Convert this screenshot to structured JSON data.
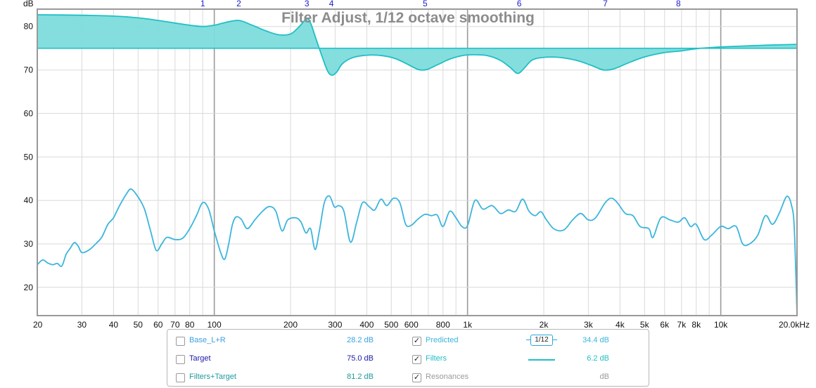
{
  "chart_data": {
    "type": "line",
    "title": "Filter Adjust, 1/12 octave smoothing",
    "ylabel": "dB",
    "x_scale": "log",
    "xlim": [
      20,
      20000
    ],
    "ylim": [
      13.5,
      84
    ],
    "x_ticks": [
      {
        "v": 20,
        "label": "20"
      },
      {
        "v": 30,
        "label": "30"
      },
      {
        "v": 40,
        "label": "40"
      },
      {
        "v": 50,
        "label": "50"
      },
      {
        "v": 60,
        "label": "60"
      },
      {
        "v": 70,
        "label": "70"
      },
      {
        "v": 80,
        "label": "80"
      },
      {
        "v": 100,
        "label": "100"
      },
      {
        "v": 200,
        "label": "200"
      },
      {
        "v": 300,
        "label": "300"
      },
      {
        "v": 400,
        "label": "400"
      },
      {
        "v": 500,
        "label": "500"
      },
      {
        "v": 600,
        "label": "600"
      },
      {
        "v": 800,
        "label": "800"
      },
      {
        "v": 1000,
        "label": "1k"
      },
      {
        "v": 2000,
        "label": "2k"
      },
      {
        "v": 3000,
        "label": "3k"
      },
      {
        "v": 4000,
        "label": "4k"
      },
      {
        "v": 5000,
        "label": "5k"
      },
      {
        "v": 6000,
        "label": "6k"
      },
      {
        "v": 7000,
        "label": "7k"
      },
      {
        "v": 8000,
        "label": "8k"
      },
      {
        "v": 10000,
        "label": "10k"
      },
      {
        "v": 20000,
        "label": "20.0kHz"
      }
    ],
    "y_ticks": [
      20,
      30,
      40,
      50,
      60,
      70,
      80
    ],
    "filter_markers": [
      {
        "label": "1",
        "freq": 90
      },
      {
        "label": "2",
        "freq": 125
      },
      {
        "label": "3",
        "freq": 232
      },
      {
        "label": "4",
        "freq": 290
      },
      {
        "label": "5",
        "freq": 680
      },
      {
        "label": "6",
        "freq": 1600
      },
      {
        "label": "7",
        "freq": 3500
      },
      {
        "label": "8",
        "freq": 6800
      }
    ],
    "target_level": 75.0,
    "series": [
      {
        "name": "Predicted",
        "color": "#3cb5dc",
        "points": [
          [
            20,
            25.2
          ],
          [
            21,
            26.3
          ],
          [
            22,
            25.6
          ],
          [
            23,
            25.2
          ],
          [
            24,
            25.5
          ],
          [
            25,
            24.9
          ],
          [
            26,
            27.6
          ],
          [
            27,
            29
          ],
          [
            28,
            30.3
          ],
          [
            29,
            29.5
          ],
          [
            30,
            28
          ],
          [
            32,
            28.6
          ],
          [
            34,
            30
          ],
          [
            36,
            31.6
          ],
          [
            38,
            34.5
          ],
          [
            40,
            36
          ],
          [
            42,
            38.5
          ],
          [
            45,
            41.5
          ],
          [
            47,
            42.6
          ],
          [
            50,
            40.8
          ],
          [
            53,
            38
          ],
          [
            56,
            33
          ],
          [
            59,
            28.5
          ],
          [
            62,
            30
          ],
          [
            65,
            31.5
          ],
          [
            70,
            31
          ],
          [
            75,
            31.3
          ],
          [
            80,
            33.5
          ],
          [
            85,
            36.5
          ],
          [
            90,
            39.5
          ],
          [
            95,
            38
          ],
          [
            100,
            33
          ],
          [
            106,
            28
          ],
          [
            110,
            26.5
          ],
          [
            114,
            30
          ],
          [
            118,
            34.5
          ],
          [
            122,
            36.2
          ],
          [
            128,
            35.6
          ],
          [
            135,
            33.5
          ],
          [
            145,
            35.6
          ],
          [
            155,
            37.5
          ],
          [
            165,
            38.6
          ],
          [
            175,
            37.5
          ],
          [
            185,
            33
          ],
          [
            195,
            35.5
          ],
          [
            210,
            36
          ],
          [
            220,
            35
          ],
          [
            230,
            32.5
          ],
          [
            240,
            33.5
          ],
          [
            250,
            28.7
          ],
          [
            260,
            33
          ],
          [
            272,
            39.5
          ],
          [
            285,
            41
          ],
          [
            298,
            38.5
          ],
          [
            310,
            38.8
          ],
          [
            325,
            37.5
          ],
          [
            345,
            30.4
          ],
          [
            365,
            35
          ],
          [
            385,
            39.5
          ],
          [
            410,
            38.5
          ],
          [
            430,
            37.8
          ],
          [
            455,
            40.3
          ],
          [
            480,
            38.8
          ],
          [
            510,
            40.5
          ],
          [
            540,
            39.5
          ],
          [
            570,
            34.5
          ],
          [
            600,
            34.3
          ],
          [
            640,
            35.8
          ],
          [
            680,
            36.8
          ],
          [
            720,
            36.5
          ],
          [
            760,
            36.6
          ],
          [
            800,
            34
          ],
          [
            850,
            37.5
          ],
          [
            900,
            36
          ],
          [
            950,
            34
          ],
          [
            1000,
            34.2
          ],
          [
            1070,
            40
          ],
          [
            1150,
            38
          ],
          [
            1250,
            38.8
          ],
          [
            1350,
            37
          ],
          [
            1450,
            37.8
          ],
          [
            1550,
            37.5
          ],
          [
            1650,
            40.3
          ],
          [
            1750,
            37.5
          ],
          [
            1850,
            36.5
          ],
          [
            1950,
            37.4
          ],
          [
            2050,
            35.5
          ],
          [
            2200,
            33.4
          ],
          [
            2400,
            33.2
          ],
          [
            2600,
            35.5
          ],
          [
            2800,
            37
          ],
          [
            3000,
            35.5
          ],
          [
            3200,
            36
          ],
          [
            3500,
            39.5
          ],
          [
            3700,
            40.5
          ],
          [
            3900,
            39.5
          ],
          [
            4200,
            37
          ],
          [
            4500,
            36.5
          ],
          [
            4800,
            34
          ],
          [
            5200,
            33.5
          ],
          [
            5400,
            31.5
          ],
          [
            5800,
            36
          ],
          [
            6300,
            35.5
          ],
          [
            6800,
            35
          ],
          [
            7200,
            36
          ],
          [
            7600,
            34
          ],
          [
            8000,
            34.5
          ],
          [
            8600,
            31
          ],
          [
            9200,
            32
          ],
          [
            10000,
            34
          ],
          [
            10700,
            33.5
          ],
          [
            11500,
            34
          ],
          [
            12200,
            30
          ],
          [
            13000,
            30
          ],
          [
            14000,
            32
          ],
          [
            15000,
            36.5
          ],
          [
            16000,
            34.5
          ],
          [
            17000,
            37
          ],
          [
            18000,
            40.5
          ],
          [
            18500,
            40.8
          ],
          [
            19000,
            39
          ],
          [
            19500,
            34
          ],
          [
            20000,
            14
          ]
        ]
      },
      {
        "name": "Filters",
        "color": "#20bfc4",
        "offset_from": "Target",
        "points": [
          [
            20,
            82.7
          ],
          [
            30,
            82.6
          ],
          [
            40,
            82.4
          ],
          [
            50,
            82
          ],
          [
            60,
            81.4
          ],
          [
            70,
            80.8
          ],
          [
            80,
            80.3
          ],
          [
            90,
            80
          ],
          [
            100,
            80.3
          ],
          [
            110,
            80.9
          ],
          [
            125,
            81.4
          ],
          [
            140,
            80.4
          ],
          [
            160,
            79
          ],
          [
            180,
            78.1
          ],
          [
            200,
            78.3
          ],
          [
            215,
            79.8
          ],
          [
            232,
            81.8
          ],
          [
            240,
            80.8
          ],
          [
            250,
            77.8
          ],
          [
            265,
            73.5
          ],
          [
            280,
            69.8
          ],
          [
            292,
            68.8
          ],
          [
            305,
            69.6
          ],
          [
            320,
            71.4
          ],
          [
            350,
            72.8
          ],
          [
            400,
            73.4
          ],
          [
            460,
            73.3
          ],
          [
            520,
            72.6
          ],
          [
            580,
            71.3
          ],
          [
            640,
            70.1
          ],
          [
            690,
            70.1
          ],
          [
            760,
            71.2
          ],
          [
            850,
            72.5
          ],
          [
            950,
            73.3
          ],
          [
            1050,
            73.5
          ],
          [
            1200,
            73.3
          ],
          [
            1350,
            72.2
          ],
          [
            1480,
            70.5
          ],
          [
            1580,
            69.2
          ],
          [
            1680,
            70.5
          ],
          [
            1800,
            72.3
          ],
          [
            2000,
            72.9
          ],
          [
            2300,
            72.9
          ],
          [
            2700,
            72.2
          ],
          [
            3100,
            71
          ],
          [
            3450,
            70
          ],
          [
            3800,
            70.3
          ],
          [
            4300,
            71.6
          ],
          [
            5000,
            73
          ],
          [
            6000,
            74
          ],
          [
            7000,
            74.4
          ],
          [
            8000,
            74.9
          ],
          [
            10000,
            75.3
          ],
          [
            12000,
            75.5
          ],
          [
            15000,
            75.7
          ],
          [
            20000,
            75.9
          ]
        ]
      }
    ]
  },
  "legend": {
    "rows": [
      {
        "left": {
          "label": "Base_L+R",
          "value": "28.2 dB",
          "checked": "",
          "color": "#3aa0e0"
        },
        "right": {
          "label": "Predicted",
          "value": "34.4 dB",
          "checked": "✓",
          "color": "#3cb5dc",
          "control": "1/12"
        }
      },
      {
        "left": {
          "label": "Target",
          "value": "75.0 dB",
          "checked": "",
          "color": "#1a1aaa"
        },
        "right": {
          "label": "Filters",
          "value": "6.2 dB",
          "checked": "✓",
          "color": "#20bfc4"
        }
      },
      {
        "left": {
          "label": "Filters+Target",
          "value": "81.2 dB",
          "checked": "",
          "color": "#20999e"
        },
        "right": {
          "label": "Resonances",
          "value": "dB",
          "checked": "✓",
          "color": "#9a9a9a"
        }
      }
    ]
  }
}
